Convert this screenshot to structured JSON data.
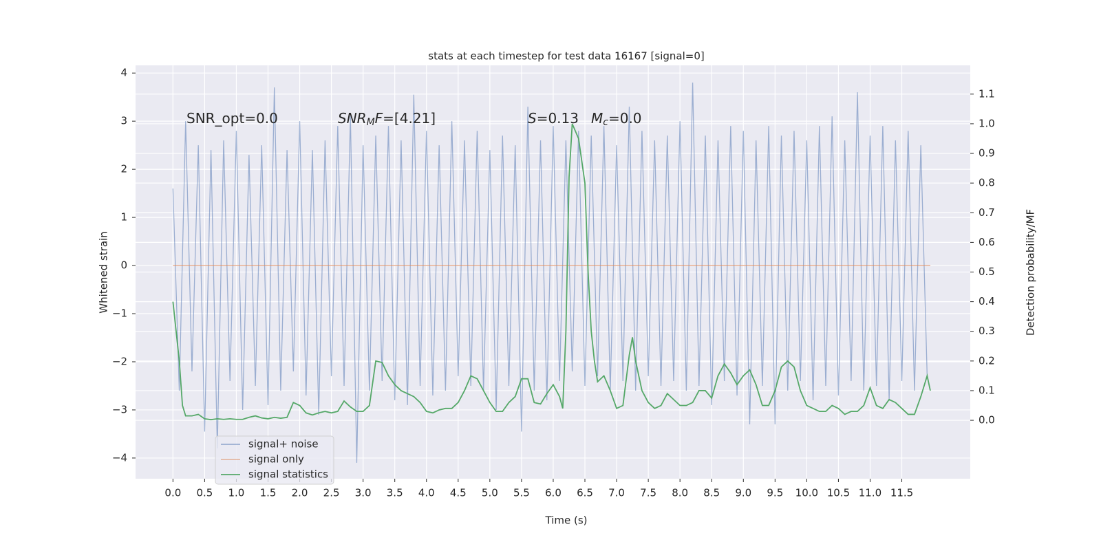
{
  "chart_data": {
    "type": "line",
    "title": "stats at each timestep for test data 16167 [signal=0]",
    "xlabel": "Time (s)",
    "ylabel": "Whitened strain",
    "y2label": "Detection probability/MF",
    "annotations": [
      [
        {
          "text": "SNR_opt=0.0"
        }
      ],
      [
        {
          "text": "SNR",
          "italic": true
        },
        {
          "text": "M",
          "italic": true,
          "sub": true
        },
        {
          "text": "F",
          "italic": true
        },
        {
          "text": "=[4.21]"
        }
      ],
      [
        {
          "text": "S",
          "italic": true
        },
        {
          "text": "=0.13"
        }
      ],
      [
        {
          "text": "M",
          "italic": true
        },
        {
          "text": "c",
          "italic": true,
          "sub": true
        },
        {
          "text": "=0.0"
        }
      ]
    ],
    "xlim": [
      -0.59,
      12.58
    ],
    "xticks": [
      {
        "value": 0,
        "label": "0.0"
      },
      0.5,
      {
        "value": 1,
        "label": "1.0"
      },
      1.5,
      {
        "value": 2,
        "label": "2.0"
      },
      2.5,
      {
        "value": 3,
        "label": "3.0"
      },
      3.5,
      {
        "value": 4,
        "label": "4.0"
      },
      4.5,
      {
        "value": 5,
        "label": "5.0"
      },
      5.5,
      {
        "value": 6,
        "label": "6.0"
      },
      6.5,
      {
        "value": 7,
        "label": "7.0"
      },
      7.5,
      {
        "value": 8,
        "label": "8.0"
      },
      8.5,
      {
        "value": 9,
        "label": "9.0"
      },
      9.5,
      {
        "value": 10,
        "label": "10.0"
      },
      10.5,
      {
        "value": 11,
        "label": "11.0"
      },
      11.5
    ],
    "ylim": [
      -4.43,
      4.16
    ],
    "yticks": [
      {
        "value": -4,
        "label": "−4"
      },
      {
        "value": -3,
        "label": "−3"
      },
      {
        "value": -2,
        "label": "−2"
      },
      {
        "value": -1,
        "label": "−1"
      },
      0,
      1,
      2,
      3,
      4
    ],
    "y2lim": [
      -0.197,
      1.197
    ],
    "y2ticks": [
      {
        "value": 0,
        "label": "0.0"
      },
      0.1,
      0.2,
      0.3,
      0.4,
      0.5,
      0.6,
      0.7,
      0.8,
      0.9,
      {
        "value": 1,
        "label": "1.0"
      },
      1.1
    ],
    "grid": true,
    "legend": "lower left",
    "series": [
      {
        "name": "signal+ noise",
        "color": "#4c72b0",
        "opacity": 0.5,
        "x": [
          0,
          0.1,
          0.2,
          0.3,
          0.4,
          0.5,
          0.6,
          0.7,
          0.8,
          0.9,
          1,
          1.1,
          1.2,
          1.3,
          1.4,
          1.5,
          1.6,
          1.7,
          1.8,
          1.9,
          2,
          2.1,
          2.2,
          2.3,
          2.4,
          2.5,
          2.6,
          2.7,
          2.8,
          2.9,
          3,
          3.1,
          3.2,
          3.3,
          3.4,
          3.5,
          3.6,
          3.7,
          3.8,
          3.9,
          4,
          4.1,
          4.2,
          4.3,
          4.4,
          4.5,
          4.6,
          4.7,
          4.8,
          4.9,
          5,
          5.1,
          5.2,
          5.3,
          5.4,
          5.5,
          5.6,
          5.7,
          5.8,
          5.9,
          6,
          6.1,
          6.2,
          6.3,
          6.4,
          6.5,
          6.6,
          6.7,
          6.8,
          6.9,
          7,
          7.1,
          7.2,
          7.3,
          7.4,
          7.5,
          7.6,
          7.7,
          7.8,
          7.9,
          8,
          8.1,
          8.2,
          8.3,
          8.4,
          8.5,
          8.6,
          8.7,
          8.8,
          8.9,
          9,
          9.1,
          9.2,
          9.3,
          9.4,
          9.5,
          9.6,
          9.7,
          9.8,
          9.9,
          10,
          10.1,
          10.2,
          10.3,
          10.4,
          10.5,
          10.6,
          10.7,
          10.8,
          10.9,
          11,
          11.1,
          11.2,
          11.3,
          11.4,
          11.5,
          11.6,
          11.7,
          11.8,
          11.9
        ],
        "values": [
          1.6,
          -2.6,
          3.0,
          -2.2,
          2.5,
          -3.45,
          2.4,
          -3.8,
          2.6,
          -2.4,
          2.8,
          -3.0,
          2.3,
          -2.5,
          2.5,
          -2.9,
          3.7,
          -2.6,
          2.4,
          -2.2,
          3.0,
          -2.7,
          2.4,
          -3.1,
          2.6,
          -2.3,
          2.9,
          -2.5,
          3.1,
          -4.1,
          2.5,
          -2.6,
          2.7,
          -2.4,
          2.9,
          -2.8,
          2.6,
          -2.9,
          3.55,
          -2.5,
          2.8,
          -2.7,
          2.5,
          -2.6,
          3.0,
          -2.3,
          2.6,
          -2.5,
          2.8,
          -2.6,
          2.4,
          -3.0,
          2.7,
          -2.5,
          2.5,
          -3.45,
          3.3,
          -2.6,
          2.6,
          -2.8,
          2.9,
          -2.4,
          2.6,
          -2.2,
          2.8,
          -2.5,
          2.7,
          -2.3,
          2.9,
          -2.6,
          2.5,
          -2.4,
          3.3,
          -2.6,
          2.8,
          -2.3,
          2.6,
          -2.5,
          2.7,
          -2.4,
          3.0,
          -2.6,
          3.8,
          -2.5,
          2.7,
          -2.9,
          2.6,
          -2.4,
          2.9,
          -2.7,
          2.8,
          -3.3,
          2.6,
          -2.5,
          2.9,
          -3.3,
          2.7,
          -2.6,
          2.8,
          -2.4,
          2.6,
          -2.8,
          2.9,
          -2.5,
          3.1,
          -2.7,
          2.6,
          -2.4,
          3.6,
          -2.6,
          2.7,
          -2.5,
          2.9,
          -2.8,
          2.6,
          -2.4,
          2.8,
          -2.6,
          2.5,
          -2.3
        ]
      },
      {
        "name": "signal only",
        "color": "#dd8452",
        "opacity": 0.5,
        "x": [
          0,
          11.95
        ],
        "values": [
          0,
          0
        ]
      },
      {
        "name": "signal statistics",
        "color": "#55a868",
        "axis": "y2",
        "x": [
          0,
          0.05,
          0.1,
          0.15,
          0.2,
          0.3,
          0.4,
          0.5,
          0.6,
          0.7,
          0.8,
          0.9,
          1,
          1.1,
          1.2,
          1.3,
          1.4,
          1.5,
          1.6,
          1.7,
          1.8,
          1.9,
          2,
          2.1,
          2.2,
          2.3,
          2.4,
          2.5,
          2.6,
          2.7,
          2.8,
          2.9,
          3,
          3.1,
          3.2,
          3.3,
          3.4,
          3.5,
          3.6,
          3.7,
          3.8,
          3.9,
          4,
          4.1,
          4.2,
          4.3,
          4.4,
          4.5,
          4.6,
          4.7,
          4.8,
          4.9,
          5,
          5.1,
          5.2,
          5.3,
          5.4,
          5.5,
          5.6,
          5.7,
          5.8,
          5.9,
          6,
          6.1,
          6.15,
          6.2,
          6.25,
          6.3,
          6.4,
          6.5,
          6.55,
          6.6,
          6.65,
          6.7,
          6.8,
          6.9,
          7,
          7.1,
          7.2,
          7.25,
          7.3,
          7.4,
          7.5,
          7.6,
          7.7,
          7.8,
          7.9,
          8,
          8.1,
          8.2,
          8.3,
          8.4,
          8.5,
          8.6,
          8.7,
          8.8,
          8.9,
          9,
          9.1,
          9.2,
          9.3,
          9.4,
          9.5,
          9.6,
          9.7,
          9.8,
          9.9,
          10,
          10.1,
          10.2,
          10.3,
          10.4,
          10.5,
          10.6,
          10.7,
          10.8,
          10.9,
          11,
          11.1,
          11.2,
          11.3,
          11.4,
          11.5,
          11.6,
          11.7,
          11.8,
          11.9,
          11.95
        ],
        "values": [
          0.4,
          0.3,
          0.2,
          0.05,
          0.015,
          0.015,
          0.02,
          0.005,
          0.002,
          0.005,
          0.003,
          0.005,
          0.003,
          0.003,
          0.01,
          0.015,
          0.008,
          0.005,
          0.01,
          0.007,
          0.01,
          0.06,
          0.05,
          0.025,
          0.018,
          0.025,
          0.03,
          0.025,
          0.03,
          0.065,
          0.045,
          0.03,
          0.03,
          0.05,
          0.2,
          0.195,
          0.15,
          0.12,
          0.1,
          0.09,
          0.08,
          0.06,
          0.03,
          0.025,
          0.035,
          0.04,
          0.04,
          0.06,
          0.1,
          0.15,
          0.14,
          0.1,
          0.06,
          0.03,
          0.03,
          0.06,
          0.08,
          0.14,
          0.14,
          0.06,
          0.055,
          0.09,
          0.12,
          0.08,
          0.04,
          0.3,
          0.82,
          1.0,
          0.95,
          0.8,
          0.5,
          0.3,
          0.2,
          0.13,
          0.15,
          0.1,
          0.04,
          0.05,
          0.22,
          0.28,
          0.2,
          0.1,
          0.06,
          0.04,
          0.05,
          0.09,
          0.07,
          0.05,
          0.05,
          0.06,
          0.1,
          0.1,
          0.075,
          0.15,
          0.19,
          0.16,
          0.12,
          0.15,
          0.17,
          0.12,
          0.05,
          0.05,
          0.1,
          0.18,
          0.2,
          0.18,
          0.1,
          0.05,
          0.04,
          0.03,
          0.03,
          0.05,
          0.04,
          0.02,
          0.03,
          0.03,
          0.05,
          0.11,
          0.05,
          0.04,
          0.07,
          0.06,
          0.04,
          0.02,
          0.02,
          0.08,
          0.15,
          0.1
        ]
      }
    ]
  }
}
